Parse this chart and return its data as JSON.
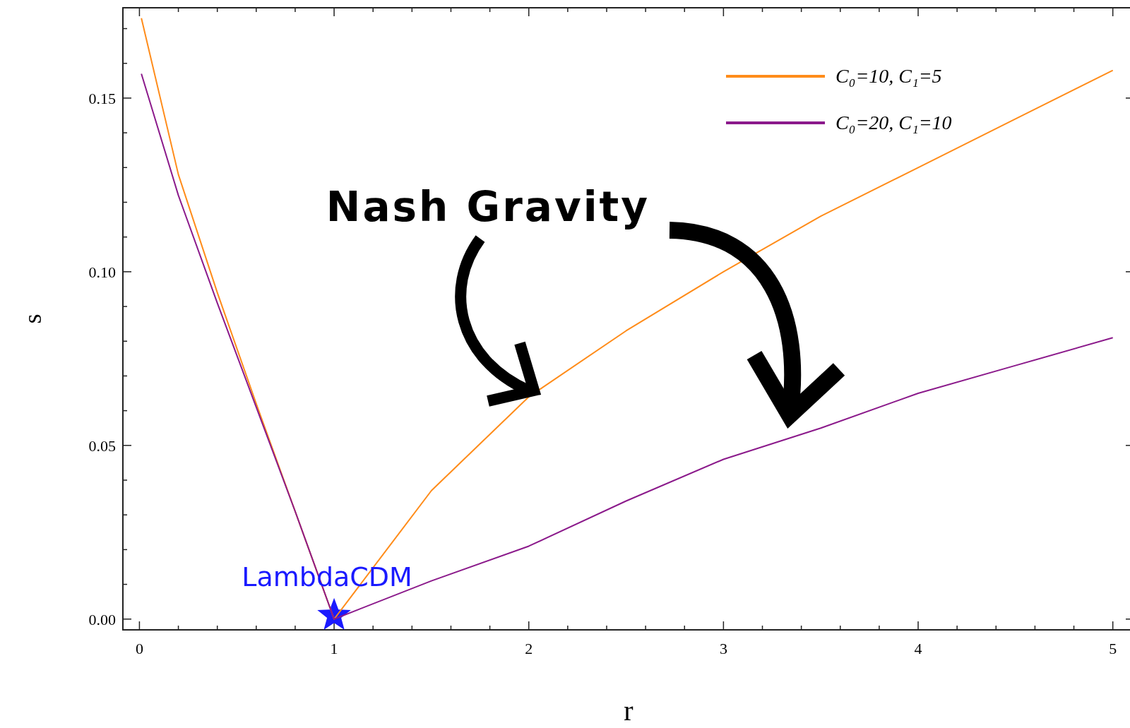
{
  "chart_data": {
    "type": "line",
    "xlabel": "r",
    "ylabel": "s",
    "xlim": [
      -0.085,
      5.11
    ],
    "ylim": [
      -0.0031,
      0.176
    ],
    "xticks": [
      0,
      {
        "value": 0.2,
        "label": null
      },
      {
        "value": 0.4,
        "label": null
      },
      {
        "value": 0.6,
        "label": null
      },
      {
        "value": 0.8,
        "label": null
      },
      1,
      {
        "value": 1.2,
        "label": null
      },
      {
        "value": 1.4,
        "label": null
      },
      {
        "value": 1.6,
        "label": null
      },
      {
        "value": 1.8,
        "label": null
      },
      2,
      {
        "value": 2.2,
        "label": null
      },
      {
        "value": 2.4,
        "label": null
      },
      {
        "value": 2.6,
        "label": null
      },
      {
        "value": 2.8,
        "label": null
      },
      3,
      {
        "value": 3.2,
        "label": null
      },
      {
        "value": 3.4,
        "label": null
      },
      {
        "value": 3.6,
        "label": null
      },
      {
        "value": 3.8,
        "label": null
      },
      4,
      {
        "value": 4.2,
        "label": null
      },
      {
        "value": 4.4,
        "label": null
      },
      {
        "value": 4.6,
        "label": null
      },
      {
        "value": 4.8,
        "label": null
      },
      5
    ],
    "yticks": [
      {
        "value": 0,
        "label": "0.00"
      },
      {
        "value": 0.01,
        "label": null
      },
      {
        "value": 0.02,
        "label": null
      },
      {
        "value": 0.03,
        "label": null
      },
      {
        "value": 0.04,
        "label": null
      },
      0.05,
      {
        "value": 0.06,
        "label": null
      },
      {
        "value": 0.07,
        "label": null
      },
      {
        "value": 0.08,
        "label": null
      },
      {
        "value": 0.09,
        "label": null
      },
      {
        "value": 0.1,
        "label": "0.10"
      },
      {
        "value": 0.11,
        "label": null
      },
      {
        "value": 0.12,
        "label": null
      },
      {
        "value": 0.13,
        "label": null
      },
      {
        "value": 0.14,
        "label": null
      },
      0.15,
      {
        "value": 0.16,
        "label": null
      },
      {
        "value": 0.17,
        "label": null
      }
    ],
    "grid": false,
    "legend": "top right",
    "marker": "none",
    "line_style": "solid",
    "series": [
      {
        "name": "C₀=10, C₁=5",
        "color": "#ff8c1a",
        "x": [
          0.01,
          0.2,
          0.4,
          0.6,
          0.8,
          1,
          1.5,
          2,
          2.5,
          3,
          3.5,
          4,
          4.5,
          5
        ],
        "values": [
          0.173,
          0.128,
          0.094,
          0.062,
          0.031,
          0,
          0.037,
          0.064,
          0.083,
          0.1,
          0.116,
          0.13,
          0.144,
          0.158
        ]
      },
      {
        "name": "C₀=20, C₁=10",
        "color": "#8b1a8b",
        "x": [
          0.01,
          0.2,
          0.4,
          0.6,
          0.8,
          1,
          1.5,
          2,
          2.5,
          3,
          3.5,
          4,
          4.5,
          5
        ],
        "values": [
          0.157,
          0.122,
          0.091,
          0.061,
          0.031,
          0,
          0.011,
          0.021,
          0.034,
          0.046,
          0.055,
          0.065,
          0.073,
          0.081
        ]
      },
      {
        "type": "scatter",
        "marker": "star",
        "color": "#1a1aff",
        "x": [
          1
        ],
        "values": [
          0.001
        ]
      }
    ],
    "annotations": [
      "Nash Gravity",
      {
        "text": "LambdaCDM",
        "x": 1,
        "y": 0.001
      }
    ]
  }
}
